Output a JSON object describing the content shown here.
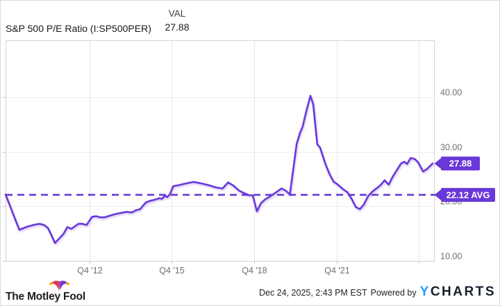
{
  "header": {
    "title": "S&P 500 P/E Ratio (I:SP500PER)",
    "val_label": "VAL",
    "val": "27.88"
  },
  "chart_data": {
    "type": "line",
    "title": "S&P 500 P/E Ratio (I:SP500PER)",
    "xlabel": "",
    "ylabel": "P/E Ratio",
    "xlim": [
      2009.9,
      2025.5
    ],
    "ylim": [
      10,
      50.5
    ],
    "grid": true,
    "legend": "none",
    "line_color": "#6938d8",
    "average": 22.12,
    "average_badge": "22.12 AVG",
    "last_value": 27.88,
    "last_badge": "27.88",
    "x_ticks": [
      {
        "x": 2012.95,
        "label": "Q4 '12"
      },
      {
        "x": 2015.95,
        "label": "Q4 '15"
      },
      {
        "x": 2018.95,
        "label": "Q4 '18"
      },
      {
        "x": 2021.95,
        "label": "Q4 '21"
      },
      {
        "x": 2024.95,
        "label": ""
      }
    ],
    "y_ticks": [
      {
        "v": 40,
        "label": "40.00"
      },
      {
        "v": 30,
        "label": "30.00"
      },
      {
        "v": 20,
        "label": "20.00"
      },
      {
        "v": 10,
        "label": "10.00"
      }
    ],
    "series": [
      {
        "name": "S&P 500 P/E Ratio",
        "points": [
          [
            2009.9,
            22.2
          ],
          [
            2010.4,
            15.7
          ],
          [
            2010.7,
            16.3
          ],
          [
            2011.0,
            16.7
          ],
          [
            2011.15,
            16.8
          ],
          [
            2011.3,
            16.6
          ],
          [
            2011.45,
            16.0
          ],
          [
            2011.7,
            13.3
          ],
          [
            2012.0,
            14.9
          ],
          [
            2012.15,
            16.2
          ],
          [
            2012.3,
            15.9
          ],
          [
            2012.55,
            16.8
          ],
          [
            2012.7,
            16.8
          ],
          [
            2012.85,
            16.6
          ],
          [
            2013.05,
            18.1
          ],
          [
            2013.2,
            18.2
          ],
          [
            2013.35,
            18.0
          ],
          [
            2013.5,
            18.0
          ],
          [
            2013.7,
            18.3
          ],
          [
            2013.9,
            18.6
          ],
          [
            2014.1,
            18.8
          ],
          [
            2014.3,
            19.0
          ],
          [
            2014.5,
            18.9
          ],
          [
            2014.65,
            19.3
          ],
          [
            2014.8,
            19.5
          ],
          [
            2015.0,
            20.7
          ],
          [
            2015.15,
            21.0
          ],
          [
            2015.3,
            21.2
          ],
          [
            2015.5,
            21.5
          ],
          [
            2015.6,
            21.4
          ],
          [
            2015.7,
            22.0
          ],
          [
            2015.78,
            21.7
          ],
          [
            2015.88,
            22.2
          ],
          [
            2016.0,
            23.7
          ],
          [
            2016.2,
            23.9
          ],
          [
            2016.45,
            24.2
          ],
          [
            2016.75,
            24.5
          ],
          [
            2017.05,
            24.2
          ],
          [
            2017.3,
            23.9
          ],
          [
            2017.55,
            23.5
          ],
          [
            2017.8,
            23.3
          ],
          [
            2018.0,
            24.4
          ],
          [
            2018.2,
            23.8
          ],
          [
            2018.4,
            22.9
          ],
          [
            2018.6,
            22.4
          ],
          [
            2018.75,
            22.1
          ],
          [
            2018.9,
            22.0
          ],
          [
            2019.05,
            19.1
          ],
          [
            2019.2,
            20.6
          ],
          [
            2019.35,
            21.3
          ],
          [
            2019.55,
            21.9
          ],
          [
            2019.75,
            22.6
          ],
          [
            2019.95,
            23.3
          ],
          [
            2020.1,
            22.9
          ],
          [
            2020.25,
            22.2
          ],
          [
            2020.5,
            31.5
          ],
          [
            2020.62,
            33.5
          ],
          [
            2020.72,
            34.7
          ],
          [
            2020.85,
            37.5
          ],
          [
            2021.0,
            40.3
          ],
          [
            2021.1,
            38.8
          ],
          [
            2021.25,
            31.4
          ],
          [
            2021.35,
            30.8
          ],
          [
            2021.55,
            27.7
          ],
          [
            2021.7,
            25.9
          ],
          [
            2021.85,
            24.5
          ],
          [
            2022.0,
            24.0
          ],
          [
            2022.2,
            23.1
          ],
          [
            2022.35,
            22.6
          ],
          [
            2022.5,
            21.4
          ],
          [
            2022.65,
            19.9
          ],
          [
            2022.8,
            19.5
          ],
          [
            2022.95,
            20.4
          ],
          [
            2023.1,
            21.9
          ],
          [
            2023.25,
            22.7
          ],
          [
            2023.4,
            23.3
          ],
          [
            2023.55,
            23.9
          ],
          [
            2023.7,
            24.8
          ],
          [
            2023.85,
            24.0
          ],
          [
            2024.0,
            25.5
          ],
          [
            2024.15,
            26.7
          ],
          [
            2024.3,
            27.9
          ],
          [
            2024.42,
            28.2
          ],
          [
            2024.52,
            27.8
          ],
          [
            2024.65,
            28.9
          ],
          [
            2024.8,
            28.7
          ],
          [
            2024.92,
            28.1
          ],
          [
            2025.1,
            26.4
          ],
          [
            2025.25,
            26.9
          ],
          [
            2025.45,
            27.88
          ]
        ]
      }
    ]
  },
  "colors": {
    "accent_purple": "#6938d8",
    "grid": "#ececec",
    "plot_border": "#d4d4d4",
    "axis_text": "#6f6f6f",
    "badge_text": "#ffffff",
    "ycharts_blue": "#2d9bf0",
    "ycharts_dark": "#16202e",
    "hat_left": "#e23a52",
    "hat_right": "#7b3bd9",
    "hat_bell": "#f7b500"
  },
  "footer": {
    "brand": "The Motley Fool",
    "timestamp": "Dec 24, 2025, 2:43 PM EST",
    "powered_by": "Powered by",
    "ycharts_y": "Y",
    "ycharts_rest": "CHARTS"
  }
}
